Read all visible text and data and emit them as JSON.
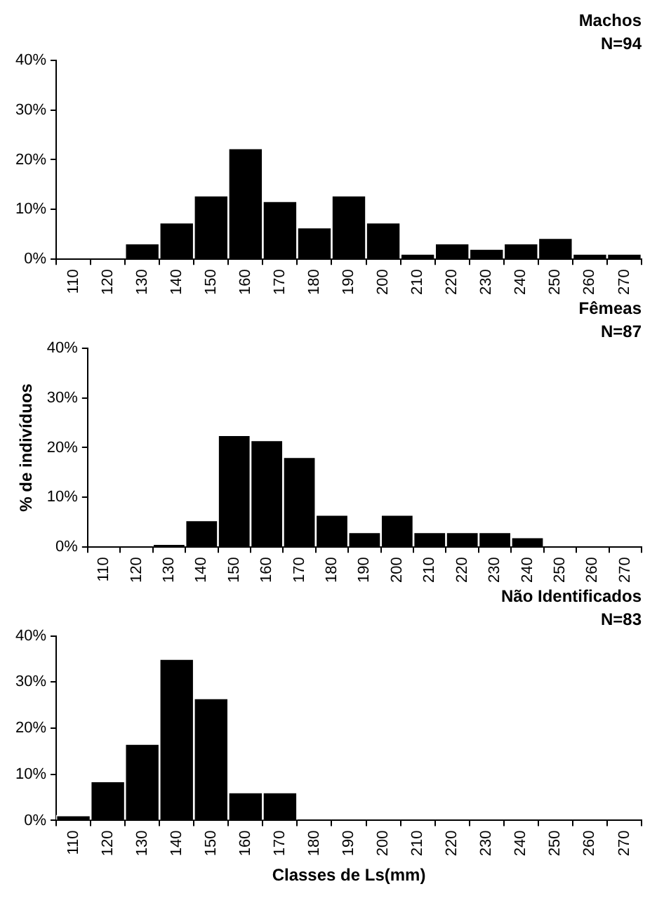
{
  "chart_data": [
    {
      "type": "bar",
      "title": "Machos",
      "subtitle": "N=94",
      "categories": [
        "110",
        "120",
        "130",
        "140",
        "150",
        "160",
        "170",
        "180",
        "190",
        "200",
        "210",
        "220",
        "230",
        "240",
        "250",
        "260",
        "270"
      ],
      "values": [
        0,
        0,
        3.2,
        7.4,
        12.8,
        22.3,
        11.7,
        6.4,
        12.8,
        7.4,
        1.1,
        3.2,
        2.1,
        3.2,
        4.3,
        1.1,
        1.1
      ],
      "color": "#000000",
      "ylim": [
        0,
        40
      ],
      "yticks": [
        {
          "value": 0,
          "label": "0%"
        },
        {
          "value": 10,
          "label": "10%"
        },
        {
          "value": 20,
          "label": "20%"
        },
        {
          "value": 30,
          "label": "30%"
        },
        {
          "value": 40,
          "label": "40%"
        }
      ]
    },
    {
      "type": "bar",
      "title": "Fêmeas",
      "subtitle": "N=87",
      "ylabel": "% de indivíduos",
      "categories": [
        "110",
        "120",
        "130",
        "140",
        "150",
        "160",
        "170",
        "180",
        "190",
        "200",
        "210",
        "220",
        "230",
        "240",
        "250",
        "260",
        "270"
      ],
      "values": [
        0,
        0,
        0.6,
        5.4,
        22.5,
        21.5,
        18.1,
        6.5,
        3,
        6.5,
        3,
        3,
        3,
        2,
        0,
        0,
        0
      ],
      "color": "#000000",
      "ylim": [
        0,
        40
      ],
      "yticks": [
        {
          "value": 0,
          "label": "0%"
        },
        {
          "value": 10,
          "label": "10%"
        },
        {
          "value": 20,
          "label": "20%"
        },
        {
          "value": 30,
          "label": "30%"
        },
        {
          "value": 40,
          "label": "40%"
        }
      ]
    },
    {
      "type": "bar",
      "title": "Não Identificados",
      "subtitle": "N=83",
      "xlabel": "Classes de Ls(mm)",
      "categories": [
        "110",
        "120",
        "130",
        "140",
        "150",
        "160",
        "170",
        "180",
        "190",
        "200",
        "210",
        "220",
        "230",
        "240",
        "250",
        "260",
        "270"
      ],
      "values": [
        1.1,
        8.5,
        16.6,
        35,
        26.5,
        6.1,
        6.1,
        0,
        0,
        0,
        0,
        0,
        0,
        0,
        0,
        0,
        0
      ],
      "color": "#000000",
      "ylim": [
        0,
        40
      ],
      "yticks": [
        {
          "value": 0,
          "label": "0%"
        },
        {
          "value": 10,
          "label": "10%"
        },
        {
          "value": 20,
          "label": "20%"
        },
        {
          "value": 30,
          "label": "30%"
        },
        {
          "value": 40,
          "label": "40%"
        }
      ]
    }
  ]
}
